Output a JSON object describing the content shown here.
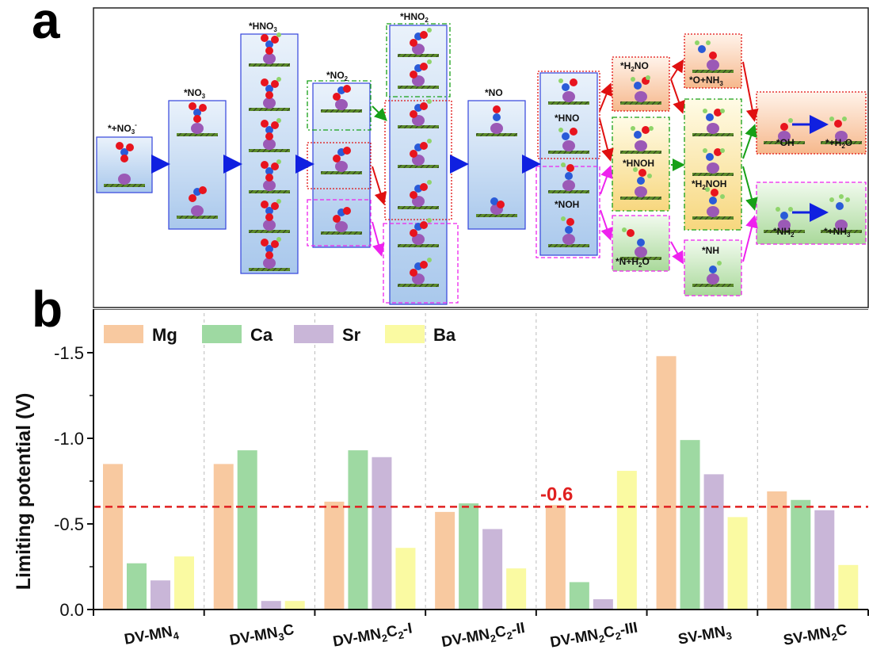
{
  "panel_a": {
    "letter": "a",
    "labels": {
      "s1": "*+NO",
      "s1_sub": "3",
      "s1_sup": "-",
      "s2": "*NO",
      "s2_sub": "3",
      "s3": "*HNO",
      "s3_sub": "3",
      "s4": "*NO",
      "s4_sub": "2",
      "s5": "*HNO",
      "s5_sub": "2",
      "s6": "*NO",
      "s7a": "*HNO",
      "s7b": "*NOH",
      "s8a_pre": "*H",
      "s8a_sub": "2",
      "s8a_post": "NO",
      "s8b": "*HNOH",
      "s8c_pre": "*N+H",
      "s8c_sub": "2",
      "s8c_post": "O",
      "s9a_pre": "*O+NH",
      "s9a_sub": "3",
      "s9b_pre": "*H",
      "s9b_sub": "2",
      "s9b_post": "NOH",
      "s9c": "*NH",
      "s10a": "*OH",
      "s10b_pre": "*+H",
      "s10b_sub": "2",
      "s10b_post": "O",
      "s11a": "*NH",
      "s11a_sub": "2",
      "s11b": "*+NH",
      "s11b_sub": "3"
    }
  },
  "panel_b": {
    "letter": "b"
  },
  "chart_data": {
    "type": "bar",
    "ylabel": "Limiting potential (V)",
    "xlabel": "",
    "ylim": [
      0,
      1.75
    ],
    "y_axis_inverted_sign": true,
    "yticks": [
      {
        "value": 0.0,
        "label": "0.0"
      },
      {
        "value": 0.5,
        "label": "-0.5"
      },
      {
        "value": 1.0,
        "label": "-1.0"
      },
      {
        "value": 1.5,
        "label": "-1.5"
      }
    ],
    "categories": [
      {
        "main": "DV-MN",
        "sub": "4",
        "rest": "",
        "sub2": "",
        "rest2": ""
      },
      {
        "main": "DV-MN",
        "sub": "3",
        "rest": "C",
        "sub2": "",
        "rest2": ""
      },
      {
        "main": "DV-MN",
        "sub": "2",
        "rest": "C",
        "sub2": "2",
        "rest2": "-I"
      },
      {
        "main": "DV-MN",
        "sub": "2",
        "rest": "C",
        "sub2": "2",
        "rest2": "-II"
      },
      {
        "main": "DV-MN",
        "sub": "2",
        "rest": "C",
        "sub2": "2",
        "rest2": "-III"
      },
      {
        "main": "SV-MN",
        "sub": "3",
        "rest": "",
        "sub2": "",
        "rest2": ""
      },
      {
        "main": "SV-MN",
        "sub": "2",
        "rest": "C",
        "sub2": "",
        "rest2": ""
      }
    ],
    "series": [
      {
        "name": "Mg",
        "color": "#f8c9a0",
        "values": [
          0.85,
          0.85,
          0.63,
          0.57,
          0.61,
          1.48,
          0.69
        ]
      },
      {
        "name": "Ca",
        "color": "#9ed9a2",
        "values": [
          0.27,
          0.93,
          0.93,
          0.62,
          0.16,
          0.99,
          0.64
        ]
      },
      {
        "name": "Sr",
        "color": "#c9b6d8",
        "values": [
          0.17,
          0.05,
          0.89,
          0.47,
          0.06,
          0.79,
          0.58
        ]
      },
      {
        "name": "Ba",
        "color": "#fafaa2",
        "values": [
          0.31,
          0.05,
          0.36,
          0.24,
          0.81,
          0.54,
          0.26
        ]
      }
    ],
    "reference_line": {
      "value": 0.6,
      "label": "-0.6",
      "color": "#e02020"
    },
    "legend_position": "top-left",
    "grid": "vertical dashed separators between categories"
  }
}
